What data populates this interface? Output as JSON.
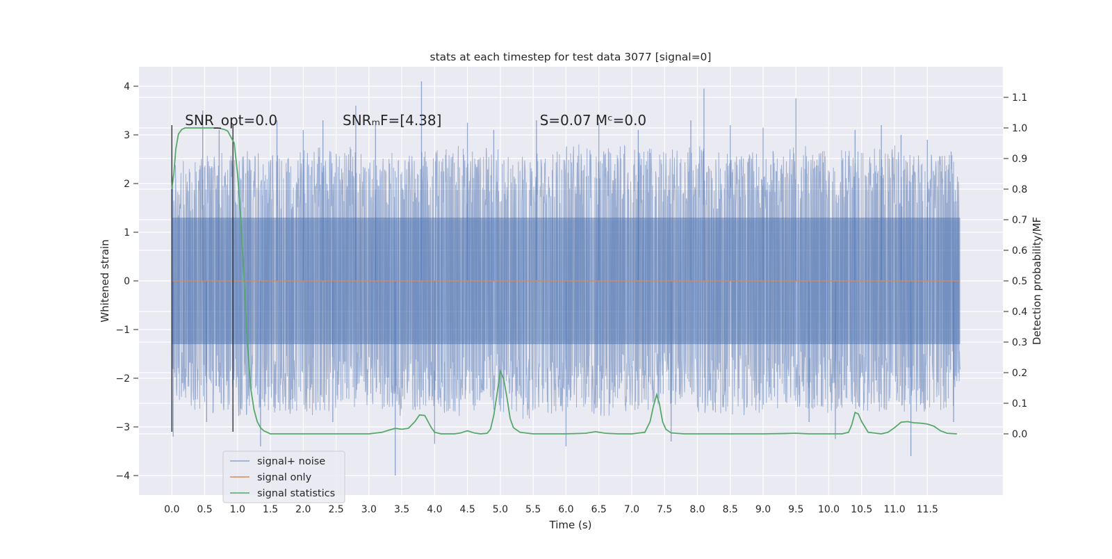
{
  "chart_data": {
    "type": "line",
    "title": "stats at each timestep for test data 3077 [signal=0]",
    "xlabel": "Time (s)",
    "ylabel": "Whitened strain",
    "y2label": "Detection probability/MF",
    "xlim": [
      -0.5,
      12.65
    ],
    "ylim": [
      -4.4,
      4.4
    ],
    "y2lim": [
      -0.2,
      1.2
    ],
    "x_ticks": [
      0.0,
      0.5,
      1.0,
      1.5,
      2.0,
      2.5,
      3.0,
      3.5,
      4.0,
      4.5,
      5.0,
      5.5,
      6.0,
      6.5,
      7.0,
      7.5,
      8.0,
      8.5,
      9.0,
      9.5,
      10.0,
      10.5,
      11.0,
      11.5
    ],
    "x_tick_labels": [
      "0.0",
      "0.5",
      "1.0",
      "1.5",
      "2.0",
      "2.5",
      "3.0",
      "3.5",
      "4.0",
      "4.5",
      "5.0",
      "5.5",
      "6.0",
      "6.5",
      "7.0",
      "7.5",
      "8.0",
      "8.5",
      "9.0",
      "9.5",
      "10.0",
      "10.5",
      "11.0",
      "11.5"
    ],
    "y_ticks": [
      4,
      3,
      2,
      1,
      0,
      -1,
      -2,
      -3,
      -4
    ],
    "y_tick_labels": [
      "4",
      "3",
      "2",
      "1",
      "0",
      "−1",
      "−2",
      "−3",
      "−4"
    ],
    "y2_ticks": [
      1.1,
      1.0,
      0.9,
      0.8,
      0.7,
      0.6,
      0.5,
      0.4,
      0.3,
      0.2,
      0.1,
      0.0
    ],
    "y2_tick_labels": [
      "1.1",
      "1.0",
      "0.9",
      "0.8",
      "0.7",
      "0.6",
      "0.5",
      "0.4",
      "0.3",
      "0.2",
      "0.1",
      "0.0"
    ],
    "grid": true,
    "legend_position": "lower-left",
    "annotations": [
      {
        "label": "SNR_opt=0.0",
        "x": 0.2,
        "y": 3.2
      },
      {
        "label": "SNRₘF=[4.38]",
        "x": 2.6,
        "y": 3.2
      },
      {
        "label": "S=0.07   Mᶜ=0.0",
        "x": 5.6,
        "y": 3.2
      }
    ],
    "vlines": [
      0.0,
      0.93
    ],
    "vline_ymax": 3.2,
    "series": [
      {
        "name": "signal+ noise",
        "color": "#4c72b0",
        "x_start": 0.0,
        "x_end": 12.0,
        "envelope_upper": [
          2.4,
          2.6,
          2.7,
          2.6,
          2.7,
          2.8,
          2.7,
          2.6,
          2.7,
          2.8,
          2.7,
          2.6,
          2.9,
          2.7,
          2.8,
          2.7,
          2.8,
          2.6,
          2.7,
          2.8,
          2.7,
          2.7,
          2.8,
          2.6,
          2.7
        ],
        "envelope_lower": [
          -2.6,
          -2.7,
          -2.8,
          -2.7,
          -2.8,
          -2.7,
          -2.6,
          -2.8,
          -2.7,
          -2.8,
          -2.7,
          -2.9,
          -2.7,
          -2.8,
          -2.7,
          -2.6,
          -2.7,
          -2.8,
          -2.7,
          -2.6,
          -2.8,
          -2.7,
          -2.8,
          -2.7,
          -2.6
        ],
        "spikes": [
          {
            "x": 0.02,
            "y": -3.2
          },
          {
            "x": 0.47,
            "y": 3.5
          },
          {
            "x": 0.53,
            "y": -2.9
          },
          {
            "x": 0.72,
            "y": 3.1
          },
          {
            "x": 1.35,
            "y": -3.4
          },
          {
            "x": 1.6,
            "y": 3.3
          },
          {
            "x": 2.0,
            "y": 3.1
          },
          {
            "x": 2.3,
            "y": 3.3
          },
          {
            "x": 2.45,
            "y": -2.9
          },
          {
            "x": 2.8,
            "y": 3.6
          },
          {
            "x": 3.1,
            "y": 3.2
          },
          {
            "x": 3.4,
            "y": -4.0
          },
          {
            "x": 3.8,
            "y": 4.1
          },
          {
            "x": 4.0,
            "y": -3.35
          },
          {
            "x": 4.5,
            "y": 3.25
          },
          {
            "x": 4.9,
            "y": 3.1
          },
          {
            "x": 5.55,
            "y": 3.3
          },
          {
            "x": 6.0,
            "y": -3.4
          },
          {
            "x": 6.5,
            "y": 3.25
          },
          {
            "x": 7.1,
            "y": 3.1
          },
          {
            "x": 7.6,
            "y": -3.3
          },
          {
            "x": 7.9,
            "y": 3.3
          },
          {
            "x": 8.1,
            "y": 3.95
          },
          {
            "x": 8.5,
            "y": 3.2
          },
          {
            "x": 9.0,
            "y": 3.15
          },
          {
            "x": 9.5,
            "y": 3.75
          },
          {
            "x": 9.7,
            "y": -2.9
          },
          {
            "x": 10.1,
            "y": -3.25
          },
          {
            "x": 10.4,
            "y": 3.1
          },
          {
            "x": 10.8,
            "y": 3.2
          },
          {
            "x": 11.1,
            "y": 3.0
          },
          {
            "x": 11.25,
            "y": -3.6
          },
          {
            "x": 11.5,
            "y": 2.9
          },
          {
            "x": 11.9,
            "y": -2.9
          }
        ]
      },
      {
        "name": "signal only",
        "color": "#dd8452",
        "x": [
          0.0,
          12.0
        ],
        "y": [
          0.0,
          0.0
        ]
      },
      {
        "name": "signal statistics",
        "color": "#55a868",
        "x": [
          0.0,
          0.03,
          0.06,
          0.1,
          0.15,
          0.2,
          0.3,
          0.5,
          0.7,
          0.8,
          0.85,
          0.9,
          0.95,
          1.0,
          1.05,
          1.1,
          1.15,
          1.2,
          1.25,
          1.3,
          1.35,
          1.4,
          1.5,
          1.7,
          2.0,
          2.5,
          3.0,
          3.2,
          3.3,
          3.4,
          3.5,
          3.6,
          3.7,
          3.77,
          3.85,
          3.95,
          4.0,
          4.1,
          4.3,
          4.4,
          4.45,
          4.5,
          4.6,
          4.7,
          4.8,
          4.85,
          4.9,
          4.95,
          5.0,
          5.05,
          5.1,
          5.15,
          5.2,
          5.3,
          5.5,
          6.0,
          6.3,
          6.45,
          6.6,
          6.8,
          7.0,
          7.2,
          7.28,
          7.33,
          7.38,
          7.42,
          7.47,
          7.52,
          7.6,
          7.8,
          8.0,
          8.5,
          9.0,
          9.3,
          9.5,
          9.7,
          10.0,
          10.2,
          10.3,
          10.35,
          10.4,
          10.45,
          10.5,
          10.6,
          10.8,
          10.9,
          11.0,
          11.1,
          11.2,
          11.3,
          11.4,
          11.5,
          11.6,
          11.7,
          11.8,
          11.95
        ],
        "y": [
          0.8,
          0.85,
          0.93,
          0.98,
          0.995,
          1.0,
          1.0,
          1.0,
          1.0,
          0.995,
          0.99,
          0.97,
          0.95,
          0.85,
          0.7,
          0.5,
          0.3,
          0.15,
          0.08,
          0.04,
          0.02,
          0.01,
          0.0,
          0.0,
          0.0,
          0.0,
          0.0,
          0.005,
          0.012,
          0.018,
          0.015,
          0.018,
          0.04,
          0.062,
          0.06,
          0.02,
          0.005,
          0.0,
          0.0,
          0.003,
          0.007,
          0.01,
          0.003,
          0.0,
          0.002,
          0.015,
          0.06,
          0.13,
          0.205,
          0.18,
          0.12,
          0.05,
          0.02,
          0.005,
          0.0,
          0.0,
          0.002,
          0.007,
          0.002,
          0.0,
          0.0,
          0.005,
          0.04,
          0.09,
          0.128,
          0.1,
          0.04,
          0.015,
          0.003,
          0.0,
          0.0,
          0.0,
          0.0,
          0.001,
          0.002,
          0.0,
          0.0,
          0.0,
          0.005,
          0.03,
          0.07,
          0.065,
          0.04,
          0.005,
          0.0,
          0.005,
          0.02,
          0.038,
          0.04,
          0.036,
          0.035,
          0.032,
          0.025,
          0.01,
          0.002,
          0.0
        ]
      }
    ]
  }
}
